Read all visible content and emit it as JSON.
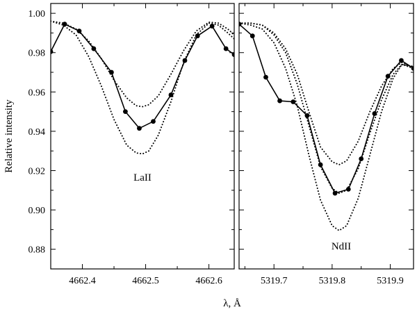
{
  "figure": {
    "ylabel": "Relative intensity",
    "xlabel": "λ, Å"
  },
  "chart_data": [
    {
      "type": "line",
      "label": "LaII",
      "xlim": [
        4662.35,
        4662.64
      ],
      "ylim": [
        0.87,
        1.005
      ],
      "xticks": [
        4662.4,
        4662.5,
        4662.6
      ],
      "xtick_labels": [
        "4662.4",
        "4662.5",
        "4662.6"
      ],
      "yticks": [
        0.88,
        0.9,
        0.92,
        0.94,
        0.96,
        0.98,
        1.0
      ],
      "ytick_labels": [
        "0.88",
        "0.90",
        "0.92",
        "0.94",
        "0.96",
        "0.98",
        "1.00"
      ],
      "observed": {
        "x": [
          4662.35,
          4662.372,
          4662.395,
          4662.418,
          4662.446,
          4662.468,
          4662.49,
          4662.512,
          4662.54,
          4662.562,
          4662.582,
          4662.605,
          4662.627,
          4662.64
        ],
        "y": [
          0.9805,
          0.9945,
          0.991,
          0.982,
          0.97,
          0.95,
          0.9415,
          0.945,
          0.9585,
          0.976,
          0.9885,
          0.9935,
          0.982,
          0.979
        ]
      },
      "models": [
        {
          "x": [
            4662.35,
            4662.37,
            4662.39,
            4662.41,
            4662.43,
            4662.45,
            4662.47,
            4662.485,
            4662.495,
            4662.505,
            4662.52,
            4662.54,
            4662.56,
            4662.58,
            4662.6,
            4662.615,
            4662.63,
            4662.64
          ],
          "y": [
            0.996,
            0.995,
            0.992,
            0.986,
            0.977,
            0.966,
            0.957,
            0.953,
            0.9525,
            0.9535,
            0.958,
            0.969,
            0.981,
            0.991,
            0.9955,
            0.995,
            0.992,
            0.989
          ]
        },
        {
          "x": [
            4662.35,
            4662.37,
            4662.39,
            4662.41,
            4662.43,
            4662.45,
            4662.47,
            4662.485,
            4662.495,
            4662.505,
            4662.52,
            4662.54,
            4662.56,
            4662.58,
            4662.6,
            4662.615,
            4662.63,
            4662.64
          ],
          "y": [
            0.996,
            0.994,
            0.989,
            0.978,
            0.963,
            0.946,
            0.933,
            0.929,
            0.9285,
            0.93,
            0.938,
            0.955,
            0.975,
            0.989,
            0.995,
            0.994,
            0.99,
            0.987
          ]
        }
      ]
    },
    {
      "type": "line",
      "label": "NdII",
      "xlim": [
        5319.64,
        5319.94
      ],
      "ylim": [
        0.87,
        1.005
      ],
      "xticks": [
        5319.7,
        5319.8,
        5319.9
      ],
      "xtick_labels": [
        "5319.7",
        "5319.8",
        "5319.9"
      ],
      "yticks": [
        0.88,
        0.9,
        0.92,
        0.94,
        0.96,
        0.98,
        1.0
      ],
      "observed": {
        "x": [
          5319.64,
          5319.663,
          5319.686,
          5319.71,
          5319.733,
          5319.757,
          5319.78,
          5319.805,
          5319.828,
          5319.85,
          5319.873,
          5319.896,
          5319.919,
          5319.94
        ],
        "y": [
          0.9945,
          0.9885,
          0.9675,
          0.9555,
          0.955,
          0.948,
          0.923,
          0.9085,
          0.9105,
          0.926,
          0.949,
          0.968,
          0.976,
          0.972
        ]
      },
      "models": [
        {
          "x": [
            5319.64,
            5319.66,
            5319.68,
            5319.7,
            5319.72,
            5319.74,
            5319.76,
            5319.78,
            5319.8,
            5319.812,
            5319.825,
            5319.845,
            5319.865,
            5319.885,
            5319.905,
            5319.92,
            5319.94
          ],
          "y": [
            0.995,
            0.995,
            0.994,
            0.99,
            0.982,
            0.969,
            0.95,
            0.932,
            0.9245,
            0.923,
            0.925,
            0.935,
            0.95,
            0.963,
            0.972,
            0.975,
            0.972
          ]
        },
        {
          "x": [
            5319.64,
            5319.66,
            5319.68,
            5319.7,
            5319.72,
            5319.74,
            5319.76,
            5319.78,
            5319.8,
            5319.812,
            5319.825,
            5319.845,
            5319.865,
            5319.885,
            5319.905,
            5319.92,
            5319.94
          ],
          "y": [
            0.995,
            0.995,
            0.994,
            0.989,
            0.98,
            0.964,
            0.943,
            0.922,
            0.911,
            0.9085,
            0.91,
            0.921,
            0.939,
            0.956,
            0.969,
            0.974,
            0.972
          ]
        },
        {
          "x": [
            5319.64,
            5319.66,
            5319.68,
            5319.7,
            5319.72,
            5319.74,
            5319.76,
            5319.78,
            5319.8,
            5319.812,
            5319.825,
            5319.845,
            5319.865,
            5319.885,
            5319.905,
            5319.92,
            5319.94
          ],
          "y": [
            0.995,
            0.994,
            0.992,
            0.985,
            0.972,
            0.953,
            0.928,
            0.905,
            0.892,
            0.8895,
            0.892,
            0.906,
            0.928,
            0.95,
            0.967,
            0.974,
            0.973
          ]
        }
      ]
    }
  ]
}
